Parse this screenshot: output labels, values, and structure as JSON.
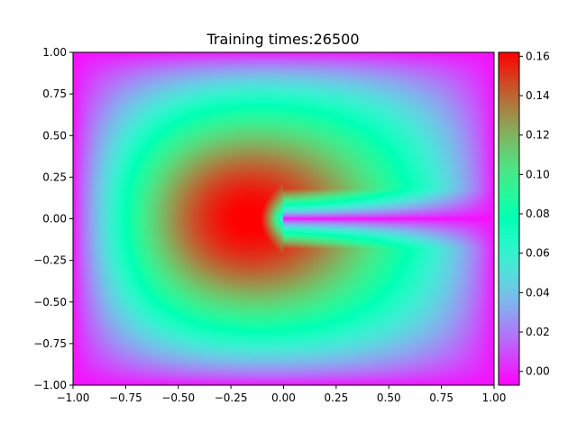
{
  "chart_data": {
    "type": "heatmap",
    "title": "Training times:26500",
    "xlabel": "",
    "ylabel": "",
    "xlim": [
      -1.0,
      1.0
    ],
    "ylim": [
      -1.0,
      1.0
    ],
    "x_ticks": [
      "−1.00",
      "−0.75",
      "−0.50",
      "−0.25",
      "0.00",
      "0.25",
      "0.50",
      "0.75",
      "1.00"
    ],
    "y_ticks": [
      "−1.00",
      "−0.75",
      "−0.50",
      "−0.25",
      "0.00",
      "0.25",
      "0.50",
      "0.75",
      "1.00"
    ],
    "colorbar": {
      "colormap": "rainbow",
      "range": [
        -0.007,
        0.162
      ],
      "ticks": [
        "0.00",
        "0.02",
        "0.04",
        "0.06",
        "0.08",
        "0.10",
        "0.12",
        "0.14",
        "0.16"
      ]
    },
    "field_description": "Solution magnitude over the square [-1,1]x[-1,1]; zero on outer boundary and along crack from (0,0) to (1,0); peak ~0.16 near (-0.35, 0.05).",
    "grid": false,
    "legend": "none"
  }
}
